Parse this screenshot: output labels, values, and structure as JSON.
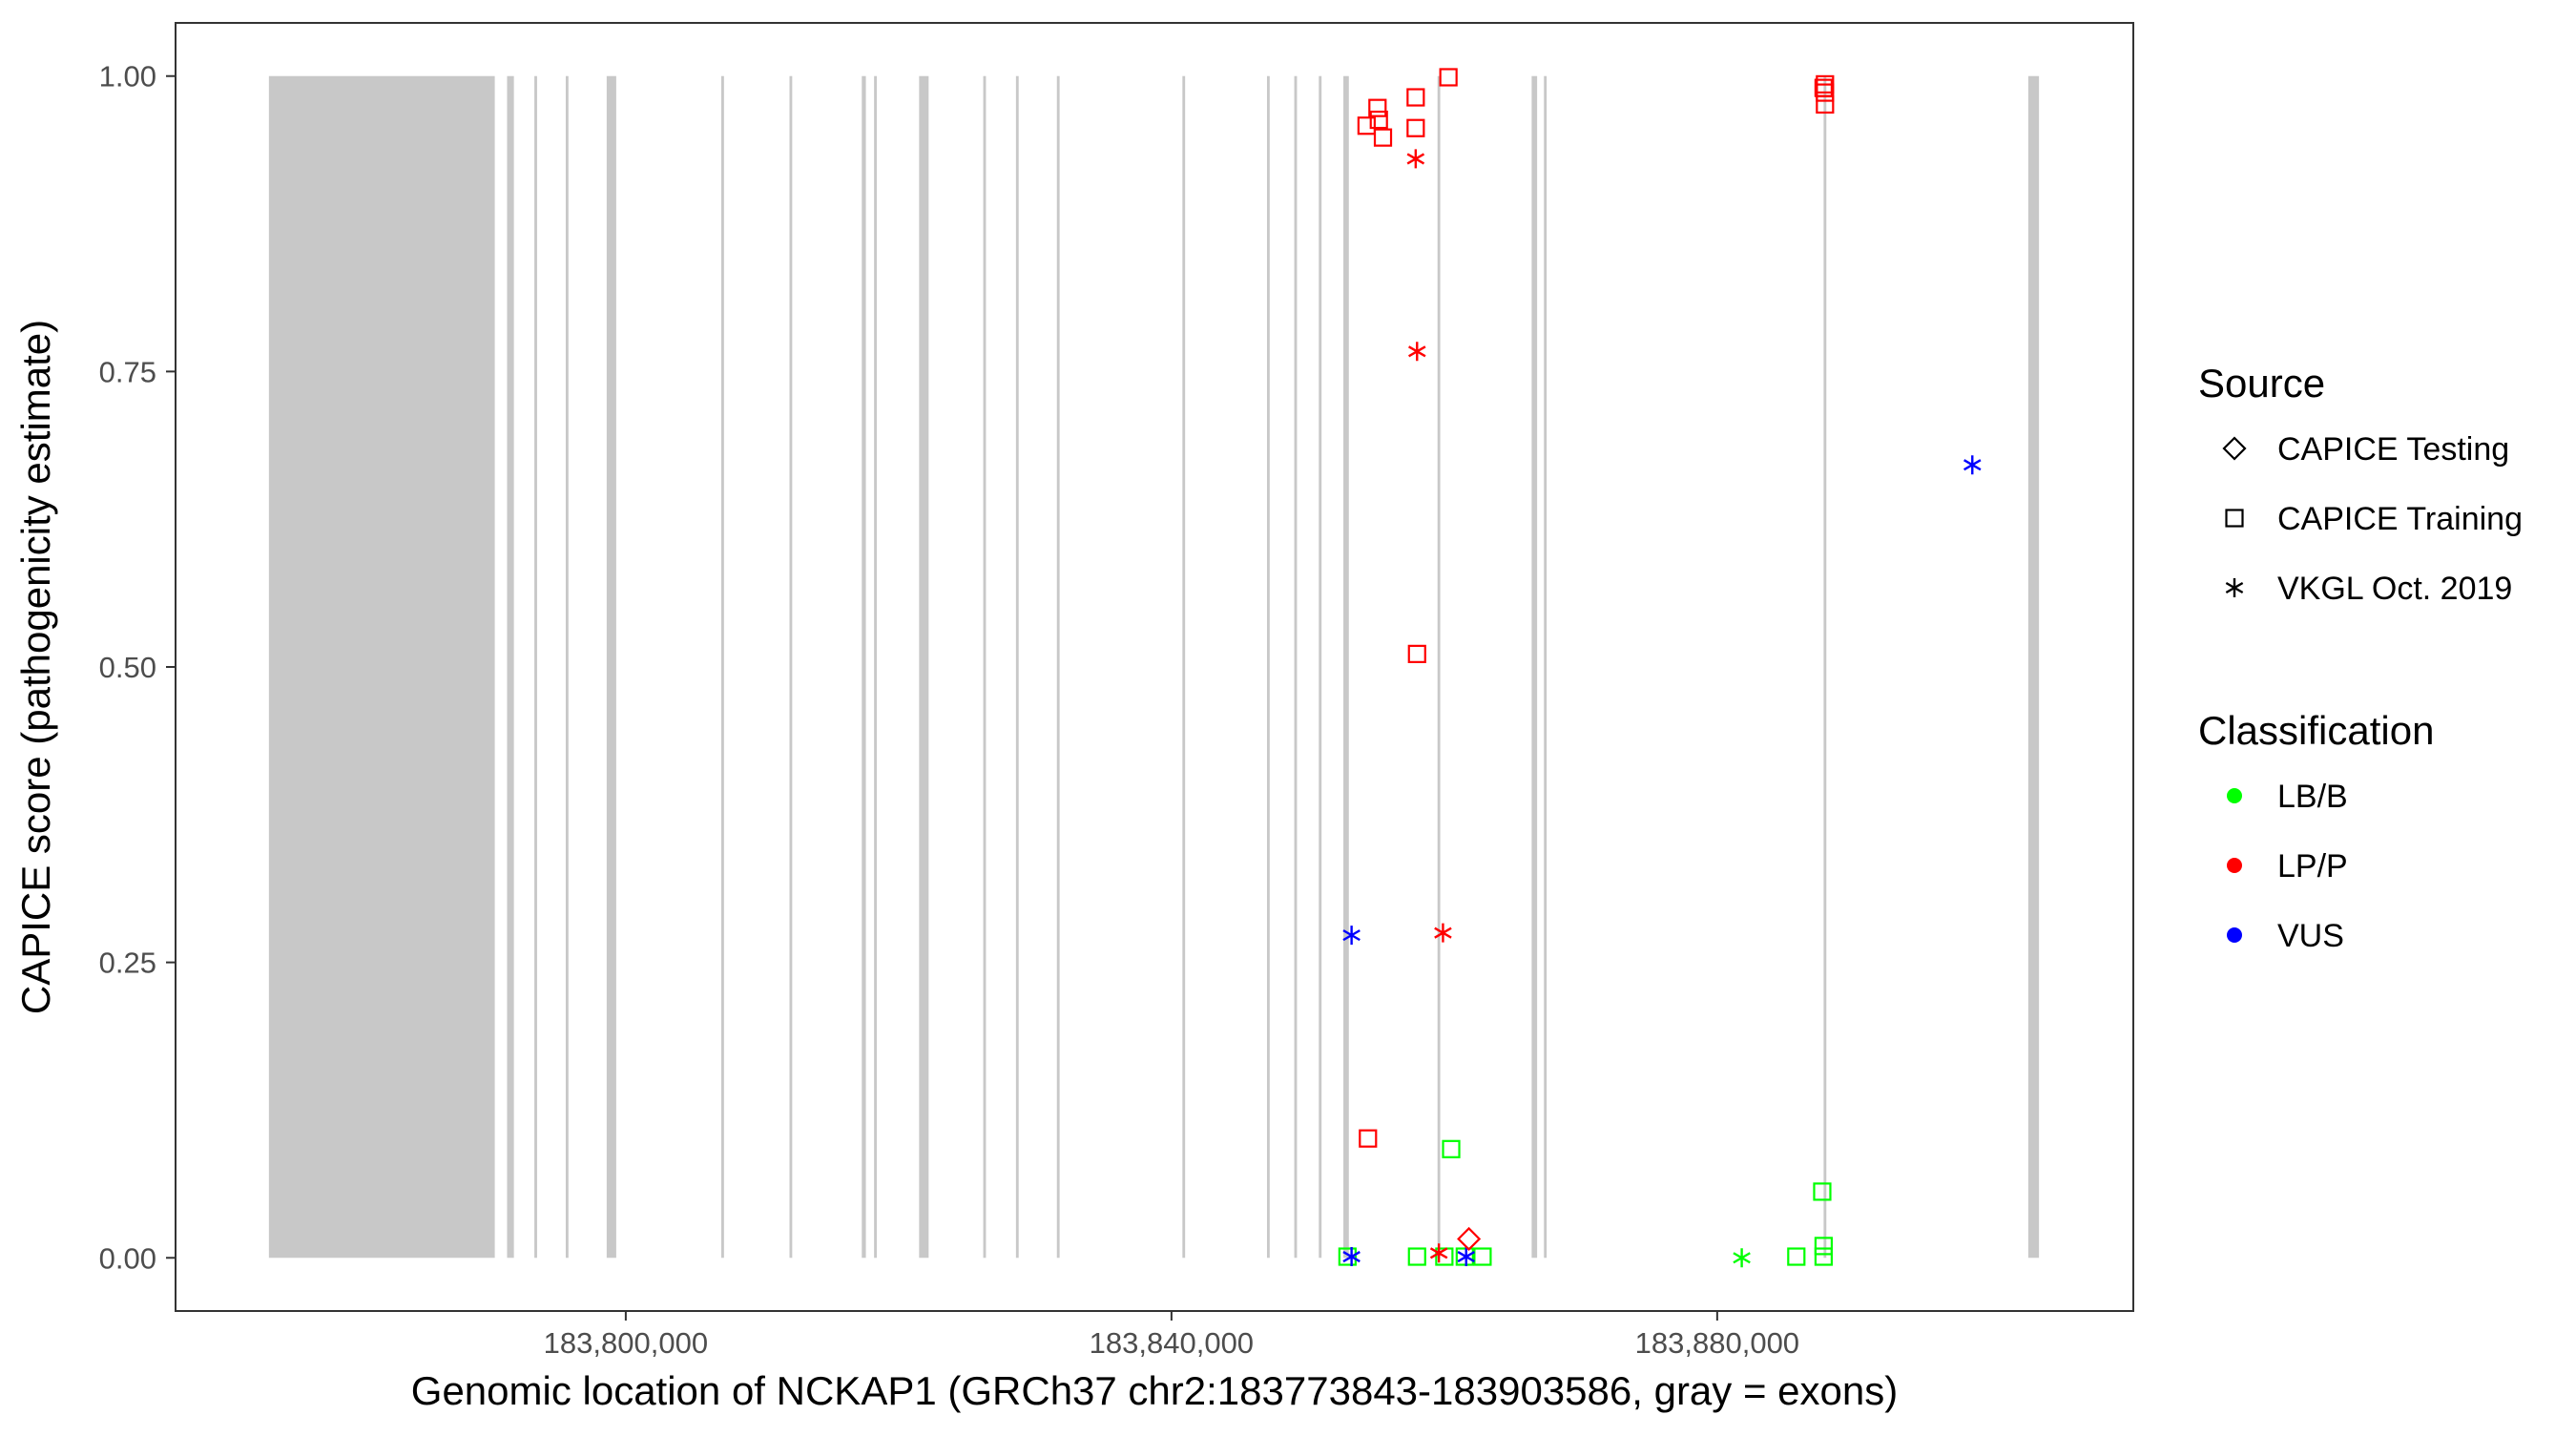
{
  "chart_data": {
    "type": "scatter",
    "title": "",
    "xlabel": "Genomic location of NCKAP1 (GRCh37 chr2:183773843-183903586, gray = exons)",
    "ylabel": "CAPICE score (pathogenicity estimate)",
    "xlim": [
      183767000,
      183910500
    ],
    "ylim": [
      -0.045,
      1.045
    ],
    "x_ticks": [
      183800000,
      183840000,
      183880000
    ],
    "x_tick_labels": [
      "183,800,000",
      "183,840,000",
      "183,880,000"
    ],
    "y_ticks": [
      0,
      0.25,
      0.5,
      0.75,
      1.0
    ],
    "y_tick_labels": [
      "0.00",
      "0.25",
      "0.50",
      "0.75",
      "1.00"
    ],
    "grid": false,
    "exon_color": "#c8c8c8",
    "exons": [
      [
        183773843,
        183790400
      ],
      [
        183791300,
        183791800
      ],
      [
        183793300,
        183793500
      ],
      [
        183795600,
        183795800
      ],
      [
        183798600,
        183799300
      ],
      [
        183807000,
        183807200
      ],
      [
        183812000,
        183812200
      ],
      [
        183817300,
        183817600
      ],
      [
        183818200,
        183818400
      ],
      [
        183821500,
        183822200
      ],
      [
        183826200,
        183826400
      ],
      [
        183828600,
        183828800
      ],
      [
        183831600,
        183831800
      ],
      [
        183840800,
        183841000
      ],
      [
        183847000,
        183847200
      ],
      [
        183849000,
        183849200
      ],
      [
        183850800,
        183851000
      ],
      [
        183852600,
        183853000
      ],
      [
        183859500,
        183859700
      ],
      [
        183866400,
        183866800
      ],
      [
        183867300,
        183867500
      ],
      [
        183887800,
        183888000
      ],
      [
        183902800,
        183903586
      ]
    ],
    "legend": {
      "source_title": "Source",
      "source_items": [
        {
          "label": "CAPICE Testing",
          "shape": "diamond"
        },
        {
          "label": "CAPICE Training",
          "shape": "square"
        },
        {
          "label": "VKGL Oct. 2019",
          "shape": "asterisk"
        }
      ],
      "class_title": "Classification",
      "class_items": [
        {
          "label": "LB/B",
          "color": "#00ff00"
        },
        {
          "label": "LP/P",
          "color": "#ff0000"
        },
        {
          "label": "VUS",
          "color": "#0000ff"
        }
      ]
    },
    "series": [
      {
        "source": "CAPICE Training",
        "classification": "LP/P",
        "points": [
          [
            183860300,
            0.999
          ],
          [
            183857900,
            0.982
          ],
          [
            183855100,
            0.973
          ],
          [
            183855200,
            0.963
          ],
          [
            183854300,
            0.958
          ],
          [
            183857900,
            0.956
          ],
          [
            183855500,
            0.948
          ],
          [
            183858000,
            0.511
          ],
          [
            183854400,
            0.101
          ],
          [
            183887900,
            0.993
          ],
          [
            183887800,
            0.99
          ],
          [
            183887900,
            0.986
          ],
          [
            183887900,
            0.976
          ]
        ]
      },
      {
        "source": "CAPICE Training",
        "classification": "LB/B",
        "points": [
          [
            183860500,
            0.092
          ],
          [
            183887700,
            0.056
          ],
          [
            183887800,
            0.01
          ],
          [
            183852900,
            0.001
          ],
          [
            183858000,
            0.001
          ],
          [
            183860000,
            0.001
          ],
          [
            183861500,
            0.001
          ],
          [
            183862800,
            0.001
          ],
          [
            183885800,
            0.001
          ],
          [
            183887800,
            0.001
          ]
        ]
      },
      {
        "source": "VKGL Oct. 2019",
        "classification": "LP/P",
        "points": [
          [
            183857900,
            0.93
          ],
          [
            183858000,
            0.767
          ],
          [
            183859900,
            0.275
          ],
          [
            183859600,
            0.004
          ]
        ]
      },
      {
        "source": "VKGL Oct. 2019",
        "classification": "VUS",
        "points": [
          [
            183898700,
            0.671
          ],
          [
            183853200,
            0.273
          ],
          [
            183853200,
            0.001
          ],
          [
            183861600,
            0.001
          ]
        ]
      },
      {
        "source": "VKGL Oct. 2019",
        "classification": "LB/B",
        "points": [
          [
            183881800,
            0.0
          ]
        ]
      },
      {
        "source": "CAPICE Testing",
        "classification": "LP/P",
        "points": [
          [
            183861800,
            0.016
          ]
        ]
      }
    ]
  }
}
